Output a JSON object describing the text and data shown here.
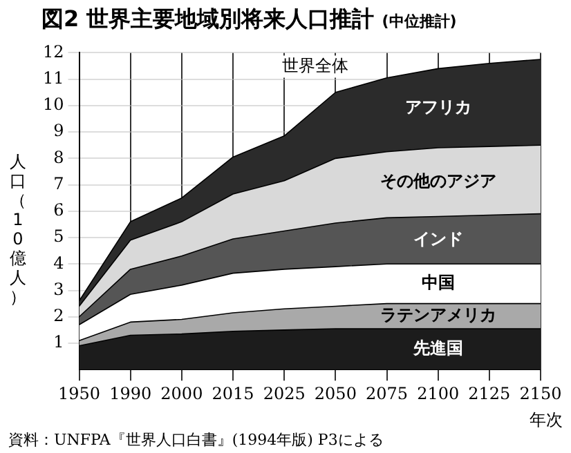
{
  "chart_data": {
    "type": "area",
    "stacked": true,
    "title": "図2 世界主要地域別将来人口推計",
    "subtitle": "(中位推計)",
    "ylabel": "人口（10億人）",
    "xlabel": "年次",
    "categories": [
      "1950",
      "1990",
      "2000",
      "2015",
      "2025",
      "2050",
      "2075",
      "2100",
      "2125",
      "2150"
    ],
    "ylim": [
      0,
      12
    ],
    "yticks": [
      1,
      2,
      3,
      4,
      5,
      6,
      7,
      8,
      9,
      10,
      11,
      12
    ],
    "grid": true,
    "legend": false,
    "marker": "none",
    "series": [
      {
        "name": "先進国",
        "color": "#1c1c1c",
        "values": [
          0.9,
          1.3,
          1.35,
          1.45,
          1.5,
          1.55,
          1.55,
          1.55,
          1.55,
          1.55
        ]
      },
      {
        "name": "ラテンアメリカ",
        "color": "#a9a9a9",
        "values": [
          0.2,
          0.5,
          0.55,
          0.7,
          0.8,
          0.85,
          0.95,
          0.95,
          0.95,
          0.95
        ]
      },
      {
        "name": "中国",
        "color": "#ffffff",
        "values": [
          0.6,
          1.05,
          1.3,
          1.5,
          1.5,
          1.5,
          1.5,
          1.5,
          1.5,
          1.5
        ]
      },
      {
        "name": "インド",
        "color": "#555555",
        "values": [
          0.3,
          0.95,
          1.1,
          1.3,
          1.45,
          1.65,
          1.75,
          1.8,
          1.85,
          1.9
        ]
      },
      {
        "name": "その他のアジア",
        "color": "#d9d9d9",
        "values": [
          0.4,
          1.1,
          1.3,
          1.7,
          1.9,
          2.45,
          2.5,
          2.6,
          2.6,
          2.6
        ]
      },
      {
        "name": "アフリカ",
        "color": "#2b2b2b",
        "values": [
          0.2,
          0.7,
          0.9,
          1.4,
          1.7,
          2.5,
          2.8,
          3.0,
          3.15,
          3.25
        ]
      }
    ],
    "annotations": [
      "世界全体",
      "資料：UNFPA『世界人口白書』(1994年版) P3による"
    ]
  }
}
